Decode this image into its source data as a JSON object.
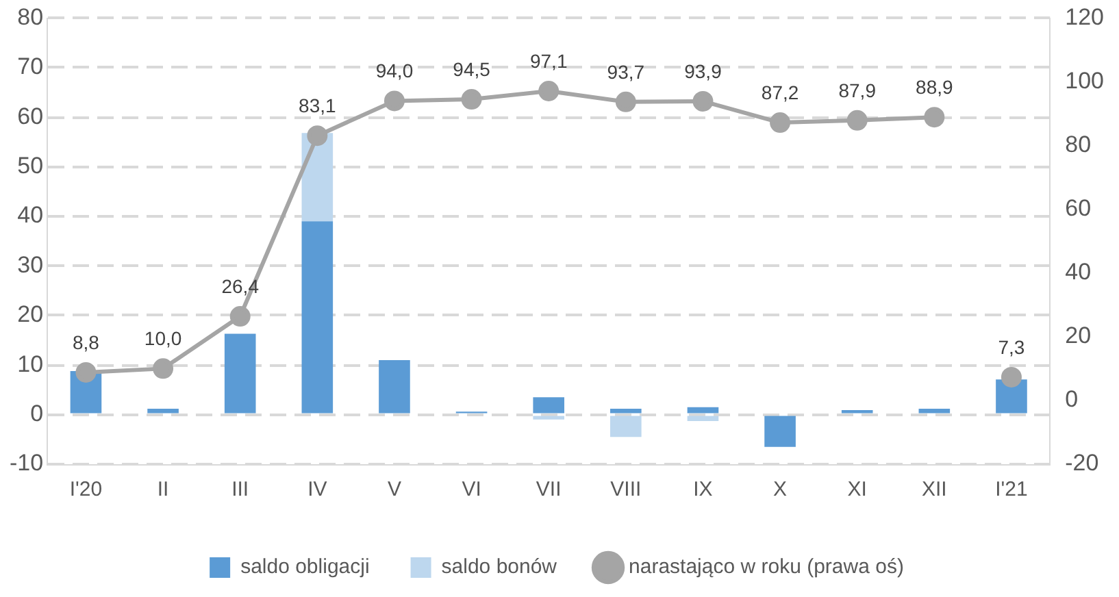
{
  "chart_data": {
    "type": "bar",
    "stacked": true,
    "categories": [
      "I'20",
      "II",
      "III",
      "IV",
      "V",
      "VI",
      "VII",
      "VIII",
      "IX",
      "X",
      "XI",
      "XII",
      "I'21"
    ],
    "series": [
      {
        "name": "saldo obligacji",
        "color": "#5b9bd5",
        "values": [
          8.8,
          1.2,
          16.3,
          39,
          11,
          0.6,
          3.5,
          1.2,
          1.5,
          -6.5,
          0.9,
          1.2,
          7.1
        ]
      },
      {
        "name": "saldo bonów",
        "color": "#bdd7ee",
        "values": [
          0,
          0,
          0,
          17.8,
          0,
          0,
          -1,
          -4.5,
          -1.3,
          0,
          0,
          0,
          0
        ]
      },
      {
        "name": "narastająco w roku (prawa oś)",
        "type": "line",
        "axis": "y2",
        "color": "#a5a5a5",
        "values": [
          8.8,
          10.0,
          26.4,
          83.1,
          94.0,
          94.5,
          97.1,
          93.7,
          93.9,
          87.2,
          87.9,
          88.9,
          null
        ],
        "value_labels": [
          "8,8",
          "10,0",
          "26,4",
          "83,1",
          "94,0",
          "94,5",
          "97,1",
          "93,7",
          "93,9",
          "87,2",
          "87,9",
          "88,9",
          null
        ]
      },
      {
        "type": "line",
        "axis": "y2",
        "color": "#a5a5a5",
        "values": [
          null,
          null,
          null,
          null,
          null,
          null,
          null,
          null,
          null,
          null,
          null,
          null,
          7.3
        ],
        "value_labels": [
          null,
          null,
          null,
          null,
          null,
          null,
          null,
          null,
          null,
          null,
          null,
          null,
          "7,3"
        ]
      }
    ],
    "ylim": [
      -10,
      80
    ],
    "yticks": [
      -10,
      0,
      10,
      20,
      30,
      40,
      50,
      60,
      70,
      80
    ],
    "y2lim": [
      -20,
      120
    ],
    "y2ticks": [
      -20,
      0,
      20,
      40,
      60,
      80,
      100,
      120
    ],
    "grid": "y",
    "legend": "bottom",
    "marker": "circle",
    "line_style": "solid"
  }
}
